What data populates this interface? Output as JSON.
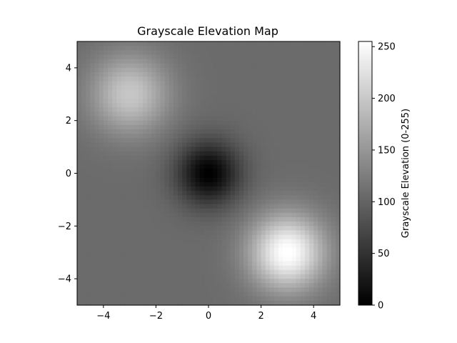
{
  "chart_data": {
    "type": "heatmap",
    "title": "Grayscale Elevation Map",
    "xlabel": "",
    "ylabel": "",
    "xlim": [
      -5,
      5
    ],
    "ylim": [
      -5,
      5
    ],
    "x_ticks": [
      -4,
      -2,
      0,
      2,
      4
    ],
    "y_ticks": [
      -4,
      -2,
      0,
      2,
      4
    ],
    "x_tick_labels": [
      "−4",
      "−2",
      "0",
      "2",
      "4"
    ],
    "y_tick_labels": [
      "−4",
      "−2",
      "0",
      "2",
      "4"
    ],
    "colormap": "gray",
    "colorbar": {
      "label": "Grayscale Elevation (0-255)",
      "range": [
        0,
        255
      ],
      "ticks": [
        0,
        50,
        100,
        150,
        200,
        250
      ],
      "tick_labels": [
        "0",
        "50",
        "100",
        "150",
        "200",
        "250"
      ]
    },
    "grid": false,
    "field": {
      "background_value": 107,
      "features": [
        {
          "kind": "peak",
          "center": [
            -3,
            3
          ],
          "amplitude": 92,
          "width": 1.05
        },
        {
          "kind": "peak",
          "center": [
            3,
            -3
          ],
          "amplitude": 150,
          "width": 1.0
        },
        {
          "kind": "pit",
          "center": [
            0,
            0
          ],
          "amplitude": -107,
          "width": 0.85
        }
      ]
    }
  }
}
